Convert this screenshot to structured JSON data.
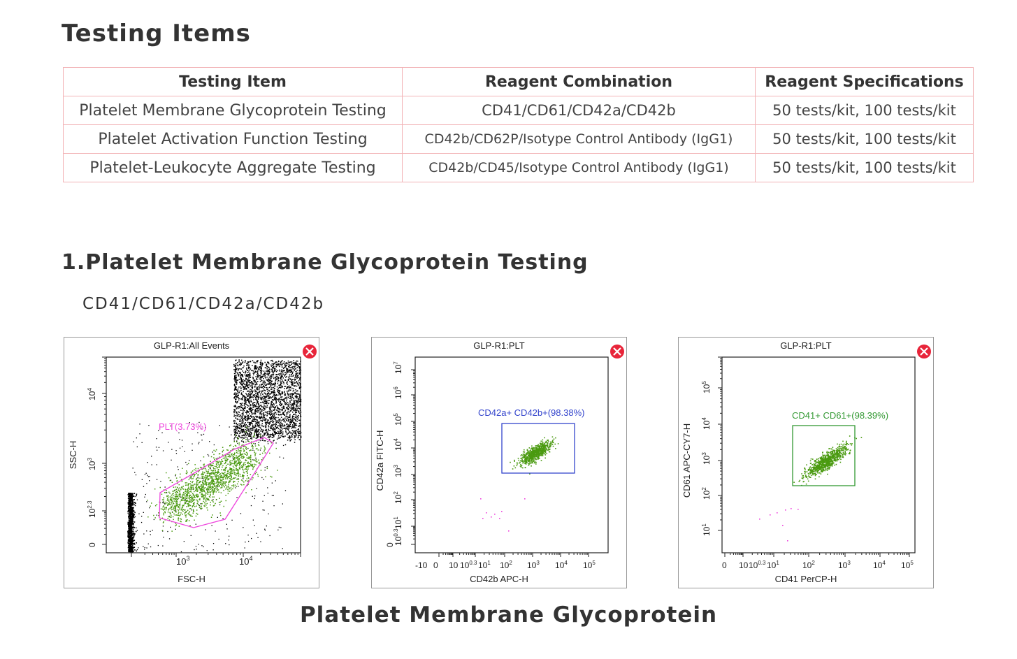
{
  "page": {
    "heading": "Testing Items",
    "section_title": "1.Platelet Membrane Glycoprotein Testing",
    "section_subtitle": "CD41/CD61/CD42a/CD42b",
    "caption": "Platelet Membrane Glycoprotein"
  },
  "table": {
    "headers": [
      "Testing Item",
      "Reagent Combination",
      "Reagent Specifications"
    ],
    "rows": [
      [
        "Platelet Membrane Glycoprotein Testing",
        "CD41/CD61/CD42a/CD42b",
        "50 tests/kit, 100 tests/kit"
      ],
      [
        "Platelet Activation Function Testing",
        "CD42b/CD62P/Isotype Control Antibody (IgG1)",
        "50 tests/kit, 100 tests/kit"
      ],
      [
        "Platelet-Leukocyte Aggregate Testing",
        "CD42b/CD45/Isotype Control Antibody (IgG1)",
        "50 tests/kit, 100 tests/kit"
      ]
    ]
  },
  "colors": {
    "border": "#f2b3b6",
    "gate_pink": "#ee44dd",
    "gate_blue": "#3344cc",
    "gate_green": "#339933",
    "dots_green": "#4a9a10",
    "close_red": "#e8253a"
  },
  "chart_data": [
    {
      "type": "scatter",
      "title": "GLP-R1:All Events",
      "xlabel": "FSC-H",
      "ylabel": "SSC-H",
      "x_scale": "log",
      "y_scale": "log",
      "x_ticks": [
        "10^3",
        "10^4"
      ],
      "y_ticks": [
        "0",
        "10^2.3",
        "10^3",
        "10^4"
      ],
      "gate": {
        "name": "PLT",
        "label": "PLT(3.73%)",
        "percent": 3.73,
        "shape": "polygon"
      },
      "populations": [
        {
          "name": "debris",
          "x_range": [
            250,
            300
          ],
          "y_range": [
            0,
            400
          ]
        },
        {
          "name": "PLT",
          "x_range": [
            700,
            20000
          ],
          "y_range": [
            200,
            2000
          ]
        },
        {
          "name": "large cells",
          "x_range": [
            6000,
            40000
          ],
          "y_range": [
            3000,
            25000
          ]
        }
      ],
      "icons": [
        "close-icon"
      ]
    },
    {
      "type": "scatter",
      "title": "GLP-R1:PLT",
      "xlabel": "CD42b APC-H",
      "ylabel": "CD42a FITC-H",
      "x_scale": "log",
      "y_scale": "log",
      "x_ticks": [
        "-10",
        "0",
        "10",
        "10^0.3",
        "10^1",
        "10^2",
        "10^3",
        "10^4",
        "10^5"
      ],
      "y_ticks": [
        "0",
        "10^0.3",
        "10^1",
        "10^2",
        "10^3",
        "10^4",
        "10^5",
        "10^6",
        "10^7"
      ],
      "gate": {
        "label": "CD42a+ CD42b+(98.38%)",
        "percent": 98.38,
        "shape": "rectangle"
      },
      "icons": [
        "close-icon"
      ]
    },
    {
      "type": "scatter",
      "title": "GLP-R1:PLT",
      "xlabel": "CD41 PerCP-H",
      "ylabel": "CD61 APC-CY7-H",
      "x_scale": "log",
      "y_scale": "log",
      "x_ticks": [
        "0",
        "10",
        "10^0.3",
        "10^1",
        "10^2",
        "10^3",
        "10^4",
        "10^5"
      ],
      "y_ticks": [
        "10^1",
        "10^2",
        "10^3",
        "10^4",
        "10^5"
      ],
      "gate": {
        "label": "CD41+ CD61+(98.39%)",
        "percent": 98.39,
        "shape": "rectangle"
      },
      "icons": [
        "close-icon"
      ]
    }
  ]
}
